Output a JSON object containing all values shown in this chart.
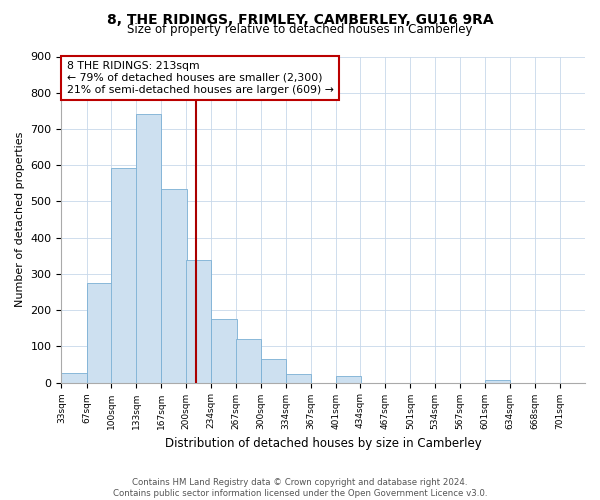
{
  "title": "8, THE RIDINGS, FRIMLEY, CAMBERLEY, GU16 9RA",
  "subtitle": "Size of property relative to detached houses in Camberley",
  "xlabel": "Distribution of detached houses by size in Camberley",
  "ylabel": "Number of detached properties",
  "bar_color": "#cde0f0",
  "bar_edge_color": "#7aafd4",
  "background_color": "#ffffff",
  "grid_color": "#c8d8ea",
  "vline_value": 213,
  "vline_color": "#aa0000",
  "annotation_line1": "8 THE RIDINGS: 213sqm",
  "annotation_line2": "← 79% of detached houses are smaller (2,300)",
  "annotation_line3": "21% of semi-detached houses are larger (609) →",
  "annotation_box_color": "#ffffff",
  "annotation_border_color": "#bb0000",
  "bins": [
    33,
    67,
    100,
    133,
    167,
    200,
    234,
    267,
    300,
    334,
    367,
    401,
    434,
    467,
    501,
    534,
    567,
    601,
    634,
    668,
    701
  ],
  "counts": [
    27,
    275,
    592,
    740,
    535,
    338,
    175,
    120,
    65,
    25,
    0,
    18,
    0,
    0,
    0,
    0,
    0,
    8,
    0,
    0
  ],
  "ylim": [
    0,
    900
  ],
  "yticks": [
    0,
    100,
    200,
    300,
    400,
    500,
    600,
    700,
    800,
    900
  ],
  "footer_text": "Contains HM Land Registry data © Crown copyright and database right 2024.\nContains public sector information licensed under the Open Government Licence v3.0.",
  "figsize": [
    6.0,
    5.0
  ],
  "dpi": 100
}
